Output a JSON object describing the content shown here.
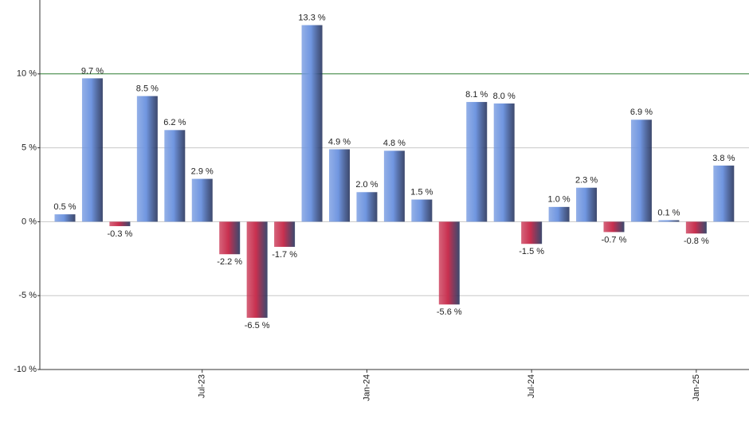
{
  "chart_data": {
    "type": "bar",
    "categories": [
      null,
      null,
      null,
      null,
      null,
      "Jul-23",
      null,
      null,
      null,
      null,
      null,
      "Jan-24",
      null,
      null,
      null,
      null,
      null,
      "Jul-24",
      null,
      null,
      null,
      null,
      null,
      "Jan-25",
      null
    ],
    "values": [
      0.5,
      9.7,
      -0.3,
      8.5,
      6.2,
      2.9,
      -2.2,
      -6.5,
      -1.7,
      13.3,
      4.9,
      2.0,
      4.8,
      1.5,
      -5.6,
      8.1,
      8.0,
      -1.5,
      1.0,
      2.3,
      -0.7,
      6.9,
      0.1,
      -0.8,
      3.8
    ],
    "value_labels": [
      "0.5 %",
      "9.7 %",
      "-0.3 %",
      "8.5 %",
      "6.2 %",
      "2.9 %",
      "-2.2 %",
      "-6.5 %",
      "-1.7 %",
      "13.3 %",
      "4.9 %",
      "2.0 %",
      "4.8 %",
      "1.5 %",
      "-5.6 %",
      "8.1 %",
      "8.0 %",
      "-1.5 %",
      "1.0 %",
      "2.3 %",
      "-0.7 %",
      "6.9 %",
      "0.1 %",
      "-0.8 %",
      "3.8 %"
    ],
    "positive_color": "#7096e0",
    "negative_color": "#c8304f",
    "ylim": [
      -10,
      15
    ],
    "yticks": [
      {
        "value": -10,
        "label": "-10 %"
      },
      {
        "value": -5,
        "label": "-5 %"
      },
      {
        "value": 0,
        "label": "0 %"
      },
      {
        "value": 5,
        "label": "5 %"
      },
      {
        "value": 10,
        "label": "10 %"
      }
    ],
    "grid": true,
    "target_line": 10,
    "target_color": "#2e7d32"
  }
}
